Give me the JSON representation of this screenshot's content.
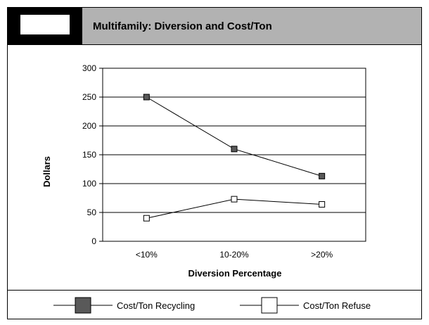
{
  "header": {
    "title": "Multifamily: Diversion and Cost/Ton"
  },
  "chart_data": {
    "type": "line",
    "categories": [
      "<10%",
      "10-20%",
      ">20%"
    ],
    "series": [
      {
        "name": "Cost/Ton Recycling",
        "values": [
          250,
          160,
          113
        ],
        "marker_fill": "#595959"
      },
      {
        "name": "Cost/Ton Refuse",
        "values": [
          40,
          73,
          64
        ],
        "marker_fill": "#ffffff"
      }
    ],
    "xlabel": "Diversion Percentage",
    "ylabel": "Dollars",
    "ylim": [
      0,
      300
    ],
    "yticks": [
      0,
      50,
      100,
      150,
      200,
      250,
      300
    ],
    "grid": true,
    "legend_position": "bottom"
  }
}
